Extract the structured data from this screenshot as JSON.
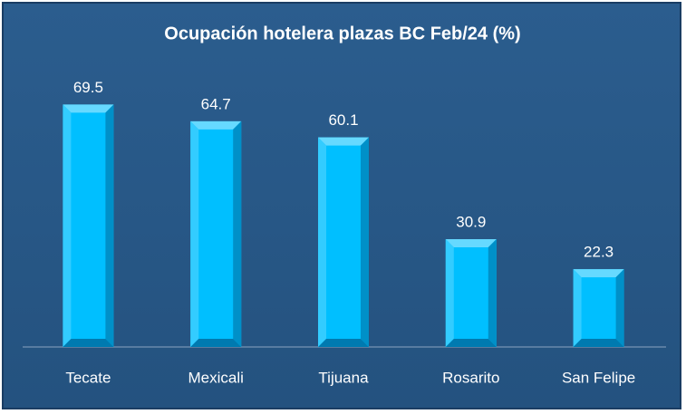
{
  "chart_data": {
    "type": "bar",
    "title": "Ocupación hotelera plazas BC Feb/24 (%)",
    "categories": [
      "Tecate",
      "Mexicali",
      "Tijuana",
      "Rosarito",
      "San Felipe"
    ],
    "values": [
      69.5,
      64.7,
      60.1,
      30.9,
      22.3
    ],
    "color": "#00bfff"
  }
}
